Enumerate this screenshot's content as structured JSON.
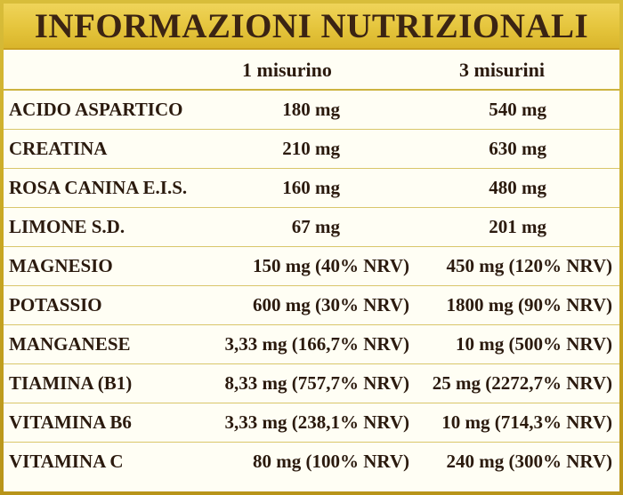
{
  "title": "INFORMAZIONI NUTRIZIONALI",
  "columns": [
    "1 misurino",
    "3 misurini"
  ],
  "rows": [
    {
      "name": "ACIDO ASPARTICO",
      "v1": "180 mg",
      "v2": "540 mg"
    },
    {
      "name": "CREATINA",
      "v1": "210 mg",
      "v2": "630 mg"
    },
    {
      "name": "ROSA CANINA E.I.S.",
      "v1": "160 mg",
      "v2": "480 mg"
    },
    {
      "name": "LIMONE S.D.",
      "v1": "67 mg",
      "v2": "201 mg"
    },
    {
      "name": "MAGNESIO",
      "v1": "150 mg (40% NRV)",
      "v2": "450 mg (120% NRV)"
    },
    {
      "name": "POTASSIO",
      "v1": "600 mg (30% NRV)",
      "v2": "1800 mg (90% NRV)"
    },
    {
      "name": "MANGANESE",
      "v1": "3,33 mg (166,7% NRV)",
      "v2": "10 mg (500% NRV)"
    },
    {
      "name": "TIAMINA (B1)",
      "v1": "8,33 mg (757,7% NRV)",
      "v2": "25 mg (2272,7% NRV)"
    },
    {
      "name": "VITAMINA B6",
      "v1": "3,33 mg (238,1% NRV)",
      "v2": "10 mg (714,3% NRV)"
    },
    {
      "name": "VITAMINA C",
      "v1": "80 mg (100% NRV)",
      "v2": "240 mg (300% NRV)"
    }
  ],
  "colors": {
    "frame": "#c9a823",
    "title_bg": "#e6c63e",
    "text": "#2b1a0e",
    "panel_bg": "#fffef4"
  }
}
